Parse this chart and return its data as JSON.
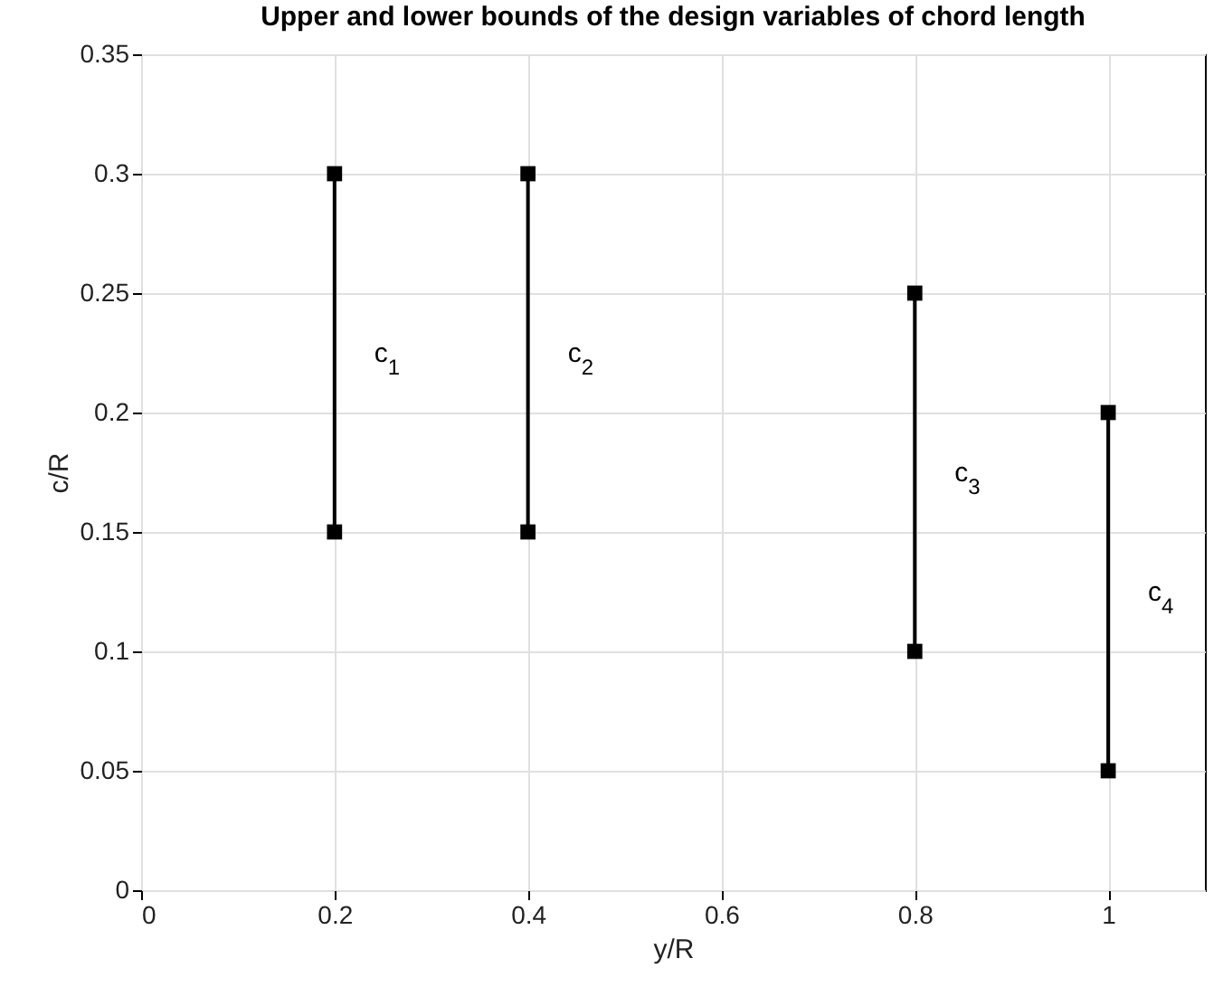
{
  "chart_data": {
    "type": "line",
    "title": "Upper and lower bounds of the design variables of chord length",
    "xlabel": "y/R",
    "ylabel": "c/R",
    "series": [
      {
        "name": "c$_{1}$",
        "color": "#000000",
        "x": [
          0.2,
          0.2
        ],
        "values": [
          0.15,
          0.3
        ]
      },
      {
        "name": "c$_{2}$",
        "color": "#000000",
        "x": [
          0.4,
          0.4
        ],
        "values": [
          0.15,
          0.3
        ]
      },
      {
        "name": "c$_{3}$",
        "color": "#000000",
        "x": [
          0.8,
          0.8
        ],
        "values": [
          0.1,
          0.25
        ]
      },
      {
        "name": "c$_{4}$",
        "color": "#000000",
        "x": [
          1,
          1
        ],
        "values": [
          0.05,
          0.2
        ]
      }
    ],
    "xlim": [
      0,
      1.1
    ],
    "xticks": [
      0,
      0.2,
      0.4,
      0.6,
      0.8,
      1
    ],
    "ylim": [
      0,
      0.35
    ],
    "yticks": [
      0,
      0.05,
      0.1,
      0.15,
      0.2,
      0.25,
      0.3,
      0.35
    ],
    "grid": true,
    "marker": "square",
    "line_style": "solid"
  }
}
